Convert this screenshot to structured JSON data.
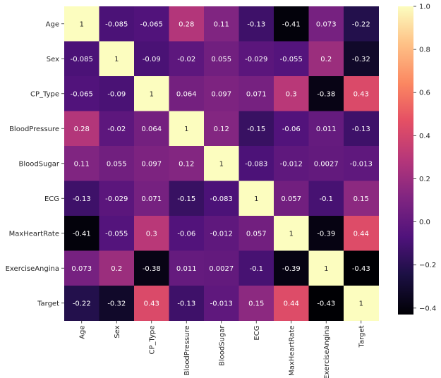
{
  "chart_data": {
    "type": "heatmap",
    "title": "",
    "xlabel": "",
    "ylabel": "",
    "colormap": "magma",
    "colorbar": {
      "min": -0.43,
      "max": 1.0,
      "ticks": [
        1.0,
        0.8,
        0.6,
        0.4,
        0.2,
        0.0,
        -0.2,
        -0.4
      ],
      "tick_labels": [
        "1.0",
        "0.8",
        "0.6",
        "0.4",
        "0.2",
        "0.0",
        "−0.2",
        "−0.4"
      ]
    },
    "rows": [
      "Age",
      "Sex",
      "CP_Type",
      "BloodPressure",
      "BloodSugar",
      "ECG",
      "MaxHeartRate",
      "ExerciseAngina",
      "Target"
    ],
    "columns": [
      "Age",
      "Sex",
      "CP_Type",
      "BloodPressure",
      "BloodSugar",
      "ECG",
      "MaxHeartRate",
      "ExerciseAngina",
      "Target"
    ],
    "values": [
      [
        1,
        -0.085,
        -0.065,
        0.28,
        0.11,
        -0.13,
        -0.41,
        0.073,
        -0.22
      ],
      [
        -0.085,
        1,
        -0.09,
        -0.02,
        0.055,
        -0.029,
        -0.055,
        0.2,
        -0.32
      ],
      [
        -0.065,
        -0.09,
        1,
        0.064,
        0.097,
        0.071,
        0.3,
        -0.38,
        0.43
      ],
      [
        0.28,
        -0.02,
        0.064,
        1,
        0.12,
        -0.15,
        -0.06,
        0.011,
        -0.13
      ],
      [
        0.11,
        0.055,
        0.097,
        0.12,
        1,
        -0.083,
        -0.012,
        0.0027,
        -0.013
      ],
      [
        -0.13,
        -0.029,
        0.071,
        -0.15,
        -0.083,
        1,
        0.057,
        -0.1,
        0.15
      ],
      [
        -0.41,
        -0.055,
        0.3,
        -0.06,
        -0.012,
        0.057,
        1,
        -0.39,
        0.44
      ],
      [
        0.073,
        0.2,
        -0.38,
        0.011,
        0.0027,
        -0.1,
        -0.39,
        1,
        -0.43
      ],
      [
        -0.22,
        -0.32,
        0.43,
        -0.13,
        -0.013,
        0.15,
        0.44,
        -0.43,
        1
      ]
    ],
    "cell_labels": [
      [
        "1",
        "-0.085",
        "-0.065",
        "0.28",
        "0.11",
        "-0.13",
        "-0.41",
        "0.073",
        "-0.22"
      ],
      [
        "-0.085",
        "1",
        "-0.09",
        "-0.02",
        "0.055",
        "-0.029",
        "-0.055",
        "0.2",
        "-0.32"
      ],
      [
        "-0.065",
        "-0.09",
        "1",
        "0.064",
        "0.097",
        "0.071",
        "0.3",
        "-0.38",
        "0.43"
      ],
      [
        "0.28",
        "-0.02",
        "0.064",
        "1",
        "0.12",
        "-0.15",
        "-0.06",
        "0.011",
        "-0.13"
      ],
      [
        "0.11",
        "0.055",
        "0.097",
        "0.12",
        "1",
        "-0.083",
        "-0.012",
        "0.0027",
        "-0.013"
      ],
      [
        "-0.13",
        "-0.029",
        "0.071",
        "-0.15",
        "-0.083",
        "1",
        "0.057",
        "-0.1",
        "0.15"
      ],
      [
        "-0.41",
        "-0.055",
        "0.3",
        "-0.06",
        "-0.012",
        "0.057",
        "1",
        "-0.39",
        "0.44"
      ],
      [
        "0.073",
        "0.2",
        "-0.38",
        "0.011",
        "0.0027",
        "-0.1",
        "-0.39",
        "1",
        "-0.43"
      ],
      [
        "-0.22",
        "-0.32",
        "0.43",
        "-0.13",
        "-0.013",
        "0.15",
        "0.44",
        "-0.43",
        "1"
      ]
    ]
  }
}
